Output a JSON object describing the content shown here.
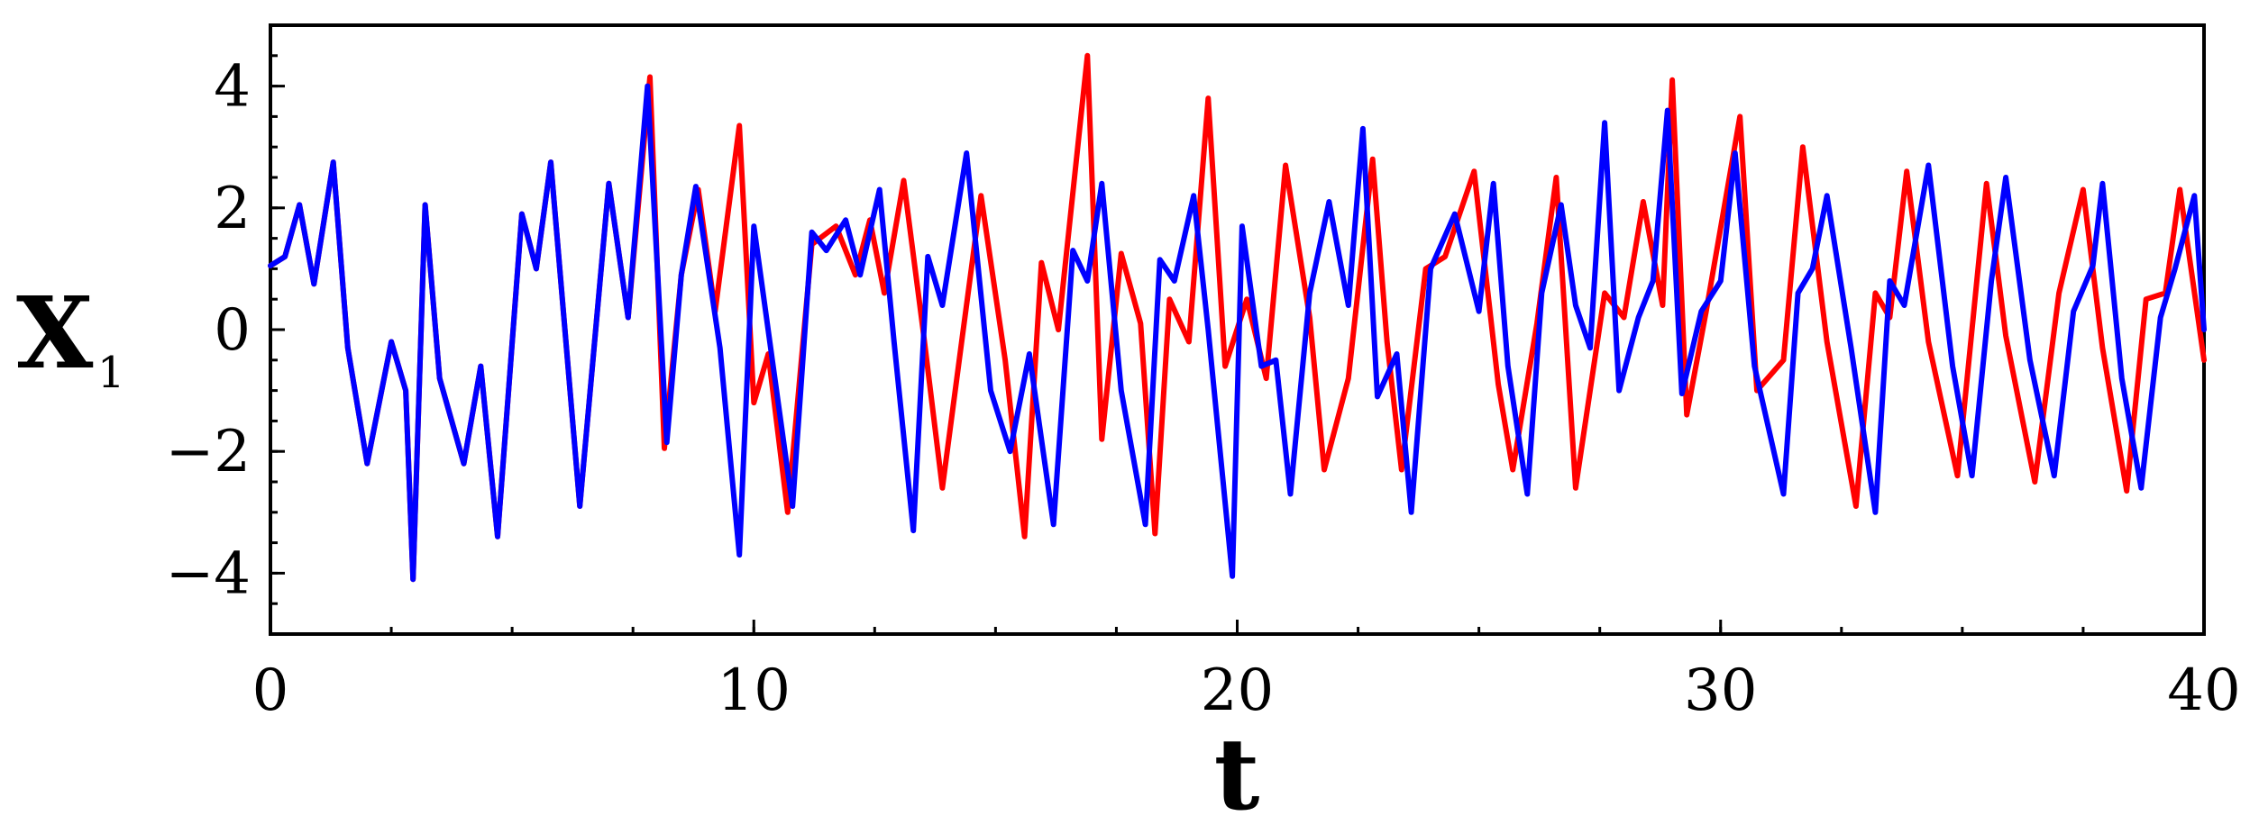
{
  "chart_data": {
    "type": "line",
    "title": "",
    "xlabel": "t",
    "ylabel": "X",
    "ylabel_subscript": "1",
    "xlim": [
      0,
      40
    ],
    "ylim": [
      -5,
      5
    ],
    "x_ticks": [
      0,
      10,
      20,
      30,
      40
    ],
    "x_tick_labels": [
      "0",
      "10",
      "20",
      "30",
      "40"
    ],
    "y_ticks": [
      -4,
      -2,
      0,
      2,
      4
    ],
    "y_tick_labels": [
      "−4",
      "−2",
      "0",
      "2",
      "4"
    ],
    "grid": false,
    "legend": "none",
    "series": [
      {
        "color": "#ff0000",
        "points": [
          [
            0,
            1.05
          ],
          [
            0.3,
            1.2
          ],
          [
            0.6,
            2.05
          ],
          [
            0.9,
            0.75
          ],
          [
            1.3,
            2.75
          ],
          [
            1.6,
            -0.3
          ],
          [
            2.0,
            -2.2
          ],
          [
            2.5,
            -0.2
          ],
          [
            2.8,
            -1.0
          ],
          [
            2.95,
            -4.1
          ],
          [
            3.2,
            2.05
          ],
          [
            3.5,
            -0.8
          ],
          [
            4.0,
            -2.2
          ],
          [
            4.35,
            -0.6
          ],
          [
            4.7,
            -3.4
          ],
          [
            5.2,
            1.9
          ],
          [
            5.5,
            1.0
          ],
          [
            5.8,
            2.75
          ],
          [
            6.4,
            -2.9
          ],
          [
            7.0,
            2.4
          ],
          [
            7.4,
            0.2
          ],
          [
            7.85,
            4.15
          ],
          [
            8.15,
            -1.95
          ],
          [
            8.5,
            0.9
          ],
          [
            8.85,
            2.3
          ],
          [
            9.2,
            0.3
          ],
          [
            9.7,
            3.35
          ],
          [
            10.0,
            -1.2
          ],
          [
            10.3,
            -0.4
          ],
          [
            10.7,
            -3.0
          ],
          [
            11.2,
            1.4
          ],
          [
            11.7,
            1.7
          ],
          [
            12.1,
            0.9
          ],
          [
            12.4,
            1.8
          ],
          [
            12.7,
            0.6
          ],
          [
            13.1,
            2.45
          ],
          [
            13.5,
            0.0
          ],
          [
            13.9,
            -2.6
          ],
          [
            14.3,
            -0.2
          ],
          [
            14.7,
            2.2
          ],
          [
            15.2,
            -0.5
          ],
          [
            15.6,
            -3.4
          ],
          [
            15.95,
            1.1
          ],
          [
            16.3,
            0.0
          ],
          [
            16.9,
            4.5
          ],
          [
            17.2,
            -1.8
          ],
          [
            17.6,
            1.25
          ],
          [
            18.0,
            0.1
          ],
          [
            18.3,
            -3.35
          ],
          [
            18.6,
            0.5
          ],
          [
            19.0,
            -0.2
          ],
          [
            19.4,
            3.8
          ],
          [
            19.75,
            -0.6
          ],
          [
            20.2,
            0.5
          ],
          [
            20.6,
            -0.8
          ],
          [
            21.0,
            2.7
          ],
          [
            21.5,
            0.2
          ],
          [
            21.8,
            -2.3
          ],
          [
            22.3,
            -0.8
          ],
          [
            22.8,
            2.8
          ],
          [
            23.1,
            -0.2
          ],
          [
            23.4,
            -2.3
          ],
          [
            23.9,
            1.0
          ],
          [
            24.3,
            1.2
          ],
          [
            24.9,
            2.6
          ],
          [
            25.4,
            -0.9
          ],
          [
            25.7,
            -2.3
          ],
          [
            26.2,
            0.1
          ],
          [
            26.6,
            2.5
          ],
          [
            27.0,
            -2.6
          ],
          [
            27.6,
            0.6
          ],
          [
            28.0,
            0.2
          ],
          [
            28.4,
            2.1
          ],
          [
            28.8,
            0.4
          ],
          [
            29.0,
            4.1
          ],
          [
            29.3,
            -1.4
          ],
          [
            29.7,
            0.3
          ],
          [
            30.4,
            3.5
          ],
          [
            30.75,
            -1.0
          ],
          [
            31.3,
            -0.5
          ],
          [
            31.7,
            3.0
          ],
          [
            32.2,
            -0.2
          ],
          [
            32.8,
            -2.9
          ],
          [
            33.2,
            0.6
          ],
          [
            33.5,
            0.2
          ],
          [
            33.85,
            2.6
          ],
          [
            34.3,
            -0.2
          ],
          [
            34.9,
            -2.4
          ],
          [
            35.5,
            2.4
          ],
          [
            35.9,
            -0.1
          ],
          [
            36.5,
            -2.5
          ],
          [
            37.0,
            0.6
          ],
          [
            37.5,
            2.3
          ],
          [
            37.9,
            -0.3
          ],
          [
            38.4,
            -2.65
          ],
          [
            38.8,
            0.5
          ],
          [
            39.2,
            0.6
          ],
          [
            39.5,
            2.3
          ],
          [
            40,
            -0.5
          ]
        ]
      },
      {
        "color": "#0000ff",
        "points": [
          [
            0,
            1.05
          ],
          [
            0.3,
            1.2
          ],
          [
            0.6,
            2.05
          ],
          [
            0.9,
            0.75
          ],
          [
            1.3,
            2.75
          ],
          [
            1.6,
            -0.3
          ],
          [
            2.0,
            -2.2
          ],
          [
            2.5,
            -0.2
          ],
          [
            2.8,
            -1.0
          ],
          [
            2.95,
            -4.1
          ],
          [
            3.2,
            2.05
          ],
          [
            3.5,
            -0.8
          ],
          [
            4.0,
            -2.2
          ],
          [
            4.35,
            -0.6
          ],
          [
            4.7,
            -3.4
          ],
          [
            5.2,
            1.9
          ],
          [
            5.5,
            1.0
          ],
          [
            5.8,
            2.75
          ],
          [
            6.4,
            -2.9
          ],
          [
            7.0,
            2.4
          ],
          [
            7.4,
            0.2
          ],
          [
            7.8,
            4.0
          ],
          [
            8.2,
            -1.85
          ],
          [
            8.5,
            0.9
          ],
          [
            8.8,
            2.35
          ],
          [
            9.3,
            -0.3
          ],
          [
            9.7,
            -3.7
          ],
          [
            10.0,
            1.7
          ],
          [
            10.4,
            -0.6
          ],
          [
            10.8,
            -2.9
          ],
          [
            11.2,
            1.6
          ],
          [
            11.5,
            1.3
          ],
          [
            11.9,
            1.8
          ],
          [
            12.2,
            0.9
          ],
          [
            12.6,
            2.3
          ],
          [
            12.9,
            -0.2
          ],
          [
            13.3,
            -3.3
          ],
          [
            13.6,
            1.2
          ],
          [
            13.9,
            0.4
          ],
          [
            14.4,
            2.9
          ],
          [
            14.9,
            -1.0
          ],
          [
            15.3,
            -2.0
          ],
          [
            15.7,
            -0.4
          ],
          [
            16.2,
            -3.2
          ],
          [
            16.6,
            1.3
          ],
          [
            16.9,
            0.8
          ],
          [
            17.2,
            2.4
          ],
          [
            17.6,
            -1.0
          ],
          [
            18.1,
            -3.2
          ],
          [
            18.4,
            1.15
          ],
          [
            18.7,
            0.8
          ],
          [
            19.1,
            2.2
          ],
          [
            19.4,
            0.0
          ],
          [
            19.9,
            -4.05
          ],
          [
            20.1,
            1.7
          ],
          [
            20.5,
            -0.6
          ],
          [
            20.8,
            -0.5
          ],
          [
            21.1,
            -2.7
          ],
          [
            21.5,
            0.6
          ],
          [
            21.9,
            2.1
          ],
          [
            22.3,
            0.4
          ],
          [
            22.6,
            3.3
          ],
          [
            22.9,
            -1.1
          ],
          [
            23.3,
            -0.4
          ],
          [
            23.6,
            -3.0
          ],
          [
            24.0,
            1.0
          ],
          [
            24.5,
            1.9
          ],
          [
            25.0,
            0.3
          ],
          [
            25.3,
            2.4
          ],
          [
            25.6,
            -0.6
          ],
          [
            26.0,
            -2.7
          ],
          [
            26.3,
            0.6
          ],
          [
            26.7,
            2.05
          ],
          [
            27.0,
            0.4
          ],
          [
            27.3,
            -0.3
          ],
          [
            27.6,
            3.4
          ],
          [
            27.9,
            -1.0
          ],
          [
            28.3,
            0.2
          ],
          [
            28.6,
            0.8
          ],
          [
            28.9,
            3.6
          ],
          [
            29.2,
            -1.05
          ],
          [
            29.6,
            0.3
          ],
          [
            30.0,
            0.8
          ],
          [
            30.3,
            2.9
          ],
          [
            30.7,
            -0.6
          ],
          [
            31.3,
            -2.7
          ],
          [
            31.6,
            0.6
          ],
          [
            31.9,
            1.0
          ],
          [
            32.2,
            2.2
          ],
          [
            32.7,
            -0.3
          ],
          [
            33.2,
            -3.0
          ],
          [
            33.5,
            0.8
          ],
          [
            33.8,
            0.4
          ],
          [
            34.3,
            2.7
          ],
          [
            34.8,
            -0.6
          ],
          [
            35.2,
            -2.4
          ],
          [
            35.6,
            0.8
          ],
          [
            35.9,
            2.5
          ],
          [
            36.4,
            -0.5
          ],
          [
            36.9,
            -2.4
          ],
          [
            37.3,
            0.3
          ],
          [
            37.7,
            1.05
          ],
          [
            37.9,
            2.4
          ],
          [
            38.3,
            -0.8
          ],
          [
            38.7,
            -2.6
          ],
          [
            39.1,
            0.2
          ],
          [
            39.4,
            1.0
          ],
          [
            39.8,
            2.2
          ],
          [
            40,
            0.0
          ]
        ]
      }
    ]
  }
}
